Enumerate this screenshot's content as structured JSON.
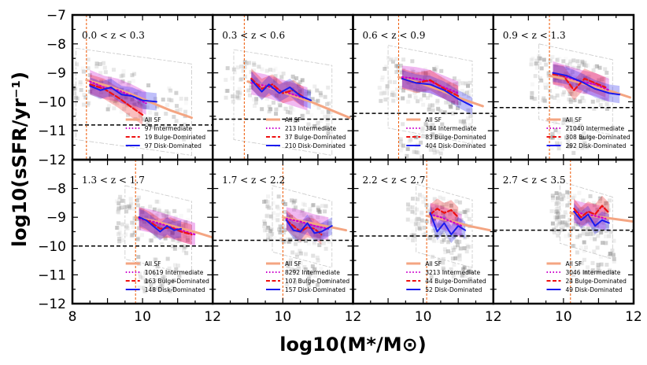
{
  "chart_data": {
    "type": "line",
    "xlabel": "log10(M*/M⊙)",
    "ylabel": "log10(sSFR/yr⁻¹)",
    "xlim": [
      8,
      12
    ],
    "ylim": [
      -12,
      -7
    ],
    "x_ticks": [
      "8",
      "10",
      "12"
    ],
    "y_ticks": [
      "−7",
      "−8",
      "−9",
      "−10",
      "−11",
      "−12"
    ],
    "colors": {
      "all_sf": "#f4a582",
      "intermediate": "#cc00cc",
      "bulge": "#ee1111",
      "disk": "#1a1aee",
      "mass_limit": "#ee5500",
      "threshold": "#000000"
    },
    "panels": [
      {
        "label": "0.0 < z < 0.3",
        "mass_limit": 8.4,
        "ssfr_threshold": -10.8,
        "legend": [
          "All SF",
          "97 Intermediate",
          "19 Bulge-Dominated",
          "97 Disk-Dominated"
        ],
        "series": {
          "all_sf": {
            "x": [
              8.4,
              9.0,
              9.6,
              10.2,
              10.8,
              11.4
            ],
            "y": [
              -9.25,
              -9.45,
              -9.7,
              -10.0,
              -10.3,
              -10.55
            ]
          },
          "intermediate": {
            "x": [
              8.5,
              8.9,
              9.3,
              9.7,
              10.1
            ],
            "y": [
              -9.3,
              -9.5,
              -9.6,
              -9.8,
              -10.05
            ]
          },
          "bulge": {
            "x": [
              8.5,
              8.9,
              9.3,
              9.7,
              10.0
            ],
            "y": [
              -9.4,
              -9.55,
              -9.85,
              -10.2,
              -10.45
            ]
          },
          "disk": {
            "x": [
              8.5,
              8.8,
              9.1,
              9.4,
              9.7,
              10.0,
              10.4
            ],
            "y": [
              -9.45,
              -9.6,
              -9.5,
              -9.75,
              -9.8,
              -9.95,
              -10.0
            ]
          }
        }
      },
      {
        "label": "0.3 < z < 0.6",
        "mass_limit": 8.9,
        "ssfr_threshold": -10.6,
        "legend": [
          "All SF",
          "213 Intermediate",
          "37 Bulge-Dominated",
          "210 Disk-Dominated"
        ],
        "series": {
          "all_sf": {
            "x": [
              9.0,
              9.6,
              10.2,
              10.8,
              11.4,
              11.9
            ],
            "y": [
              -9.3,
              -9.5,
              -9.75,
              -10.0,
              -10.3,
              -10.55
            ]
          },
          "intermediate": {
            "x": [
              9.1,
              9.5,
              9.9,
              10.3,
              10.7
            ],
            "y": [
              -9.35,
              -9.45,
              -9.6,
              -9.75,
              -9.9
            ]
          },
          "bulge": {
            "x": [
              9.1,
              9.4,
              9.7,
              10.0,
              10.3,
              10.6
            ],
            "y": [
              -9.2,
              -9.55,
              -9.4,
              -9.7,
              -9.6,
              -9.85
            ]
          },
          "disk": {
            "x": [
              9.1,
              9.4,
              9.6,
              9.9,
              10.2,
              10.5,
              10.8
            ],
            "y": [
              -9.25,
              -9.65,
              -9.4,
              -9.7,
              -9.5,
              -9.8,
              -9.95
            ]
          }
        }
      },
      {
        "label": "0.6 < z < 0.9",
        "mass_limit": 9.3,
        "ssfr_threshold": -10.4,
        "legend": [
          "All SF",
          "384 Intermediate",
          "83 Bulge-Dominated",
          "404 Disk-Dominated"
        ],
        "series": {
          "all_sf": {
            "x": [
              9.3,
              9.9,
              10.5,
              11.1,
              11.7
            ],
            "y": [
              -9.15,
              -9.35,
              -9.6,
              -9.9,
              -10.15
            ]
          },
          "intermediate": {
            "x": [
              9.4,
              9.8,
              10.2,
              10.6,
              11.0
            ],
            "y": [
              -9.15,
              -9.2,
              -9.3,
              -9.5,
              -9.7
            ]
          },
          "bulge": {
            "x": [
              9.4,
              9.8,
              10.2,
              10.6,
              11.0
            ],
            "y": [
              -9.2,
              -9.35,
              -9.25,
              -9.55,
              -9.8
            ]
          },
          "disk": {
            "x": [
              9.4,
              9.8,
              10.2,
              10.6,
              11.0,
              11.4
            ],
            "y": [
              -9.2,
              -9.35,
              -9.4,
              -9.6,
              -9.9,
              -10.15
            ]
          }
        }
      },
      {
        "label": "0.9 < z < 1.3",
        "mass_limit": 9.6,
        "ssfr_threshold": -10.2,
        "legend": [
          "All SF",
          "21040 Intermediate",
          "308 Bulge-Dominated",
          "292 Disk-Dominated"
        ],
        "series": {
          "all_sf": {
            "x": [
              9.6,
              10.2,
              10.8,
              11.4,
              11.9
            ],
            "y": [
              -9.1,
              -9.25,
              -9.45,
              -9.65,
              -9.85
            ]
          },
          "intermediate": {
            "x": [
              9.7,
              10.1,
              10.5,
              10.9,
              11.3
            ],
            "y": [
              -9.0,
              -9.15,
              -9.3,
              -9.4,
              -9.6
            ]
          },
          "bulge": {
            "x": [
              9.7,
              10.0,
              10.3,
              10.6,
              10.9,
              11.2
            ],
            "y": [
              -9.05,
              -9.1,
              -9.6,
              -9.2,
              -9.35,
              -9.5
            ]
          },
          "disk": {
            "x": [
              9.7,
              10.1,
              10.5,
              10.9,
              11.3,
              11.6
            ],
            "y": [
              -9.0,
              -9.1,
              -9.3,
              -9.55,
              -9.7,
              -9.75
            ]
          }
        }
      },
      {
        "label": "1.3 < z < 1.7",
        "mass_limit": 9.8,
        "ssfr_threshold": -10.0,
        "legend": [
          "All SF",
          "10619 Intermediate",
          "163 Bulge-Dominated",
          "148 Disk-Dominated"
        ],
        "series": {
          "all_sf": {
            "x": [
              9.8,
              10.4,
              11.0,
              11.6,
              12.0
            ],
            "y": [
              -9.0,
              -9.15,
              -9.35,
              -9.55,
              -9.7
            ]
          },
          "intermediate": {
            "x": [
              9.9,
              10.3,
              10.7,
              11.1,
              11.5
            ],
            "y": [
              -9.05,
              -9.15,
              -9.3,
              -9.45,
              -9.6
            ]
          },
          "bulge": {
            "x": [
              9.9,
              10.2,
              10.5,
              10.8,
              11.1,
              11.4
            ],
            "y": [
              -9.0,
              -9.15,
              -9.4,
              -9.35,
              -9.5,
              -9.6
            ]
          },
          "disk": {
            "x": [
              9.9,
              10.1,
              10.3,
              10.5,
              10.7,
              10.9,
              11.1
            ],
            "y": [
              -9.0,
              -9.1,
              -9.3,
              -9.5,
              -9.3,
              -9.45,
              -9.4
            ]
          }
        }
      },
      {
        "label": "1.7 < z < 2.2",
        "mass_limit": 10.0,
        "ssfr_threshold": -9.8,
        "legend": [
          "All SF",
          "8292 Intermediate",
          "107 Bulge-Dominated",
          "157 Disk-Dominated"
        ],
        "series": {
          "all_sf": {
            "x": [
              10.0,
              10.6,
              11.2,
              11.8
            ],
            "y": [
              -9.0,
              -9.15,
              -9.3,
              -9.45
            ]
          },
          "intermediate": {
            "x": [
              10.1,
              10.5,
              10.9,
              11.3
            ],
            "y": [
              -9.05,
              -9.15,
              -9.3,
              -9.4
            ]
          },
          "bulge": {
            "x": [
              10.1,
              10.3,
              10.5,
              10.7,
              10.9,
              11.1
            ],
            "y": [
              -9.1,
              -9.3,
              -9.5,
              -9.35,
              -9.4,
              -9.6
            ]
          },
          "disk": {
            "x": [
              10.1,
              10.3,
              10.5,
              10.7,
              10.9,
              11.1,
              11.4
            ],
            "y": [
              -9.1,
              -9.45,
              -9.5,
              -9.2,
              -9.55,
              -9.5,
              -9.3
            ]
          }
        }
      },
      {
        "label": "2.2 < z < 2.7",
        "mass_limit": 10.1,
        "ssfr_threshold": -9.65,
        "legend": [
          "All SF",
          "3213 Intermediate",
          "44 Bulge-Dominated",
          "52 Disk-Dominated"
        ],
        "series": {
          "all_sf": {
            "x": [
              10.1,
              10.7,
              11.3,
              11.9
            ],
            "y": [
              -8.95,
              -9.1,
              -9.3,
              -9.45
            ]
          },
          "intermediate": {
            "x": [
              10.2,
              10.5,
              10.8,
              11.1
            ],
            "y": [
              -8.9,
              -9.0,
              -9.15,
              -9.3
            ]
          },
          "bulge": {
            "x": [
              10.2,
              10.4,
              10.6,
              10.8,
              11.0
            ],
            "y": [
              -8.9,
              -8.7,
              -8.85,
              -8.75,
              -9.0
            ]
          },
          "disk": {
            "x": [
              10.2,
              10.4,
              10.6,
              10.8,
              11.0,
              11.2
            ],
            "y": [
              -8.85,
              -9.5,
              -9.2,
              -9.6,
              -9.3,
              -9.45
            ]
          }
        }
      },
      {
        "label": "2.7 < z < 3.5",
        "mass_limit": 10.2,
        "ssfr_threshold": -9.45,
        "legend": [
          "All SF",
          "3046 Intermediate",
          "24 Bulge-Dominated",
          "49 Disk-Dominated"
        ],
        "series": {
          "all_sf": {
            "x": [
              10.2,
              10.8,
              11.4,
              12.0
            ],
            "y": [
              -8.85,
              -8.95,
              -9.05,
              -9.15
            ]
          },
          "intermediate": {
            "x": [
              10.3,
              10.6,
              10.9,
              11.2
            ],
            "y": [
              -8.8,
              -8.9,
              -8.95,
              -9.05
            ]
          },
          "bulge": {
            "x": [
              10.3,
              10.5,
              10.7,
              10.9,
              11.1,
              11.3
            ],
            "y": [
              -8.7,
              -9.0,
              -8.8,
              -8.9,
              -8.6,
              -8.85
            ]
          },
          "disk": {
            "x": [
              10.3,
              10.5,
              10.7,
              10.9,
              11.1,
              11.3
            ],
            "y": [
              -8.8,
              -9.1,
              -8.9,
              -9.3,
              -9.1,
              -9.2
            ]
          }
        }
      }
    ]
  }
}
